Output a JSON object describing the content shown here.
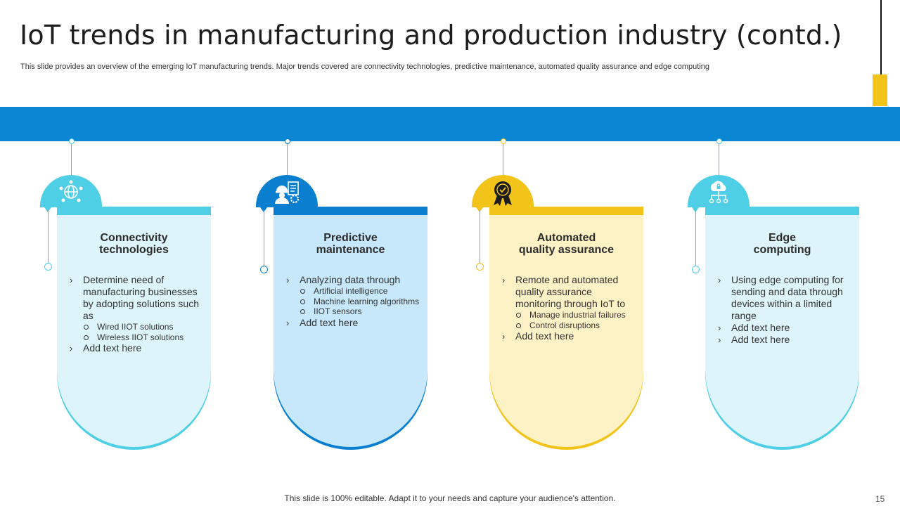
{
  "header": {
    "title": "IoT trends in manufacturing and production industry (contd.)",
    "subtitle": "This slide provides an overview of the emerging IoT manufacturing trends. Major trends covered are connectivity technologies, predictive maintenance, automated quality assurance and edge computing"
  },
  "colors": {
    "band": "#0a86d2",
    "accent_yellow": "#f2c318",
    "card1_fill": "#ddf4fa",
    "card1_edge": "#4ecfe5",
    "card2_fill": "#c7e8fb",
    "card2_edge": "#0a7fd0",
    "card3_fill": "#fdf1c6",
    "card3_edge": "#f2c318",
    "card4_fill": "#ddf4fa",
    "card4_edge": "#4ecfe5"
  },
  "cards": [
    {
      "icon": "network-globe-icon",
      "title_line1": "Connectivity",
      "title_line2": "technologies",
      "points": [
        {
          "text": "Determine need of manufacturing businesses by adopting solutions such as",
          "subs": [
            "Wired IIOT solutions",
            "Wireless IIOT solutions"
          ]
        },
        {
          "text": "Add text here",
          "subs": []
        }
      ]
    },
    {
      "icon": "engineer-checklist-icon",
      "title_line1": "Predictive",
      "title_line2": "maintenance",
      "points": [
        {
          "text": "Analyzing data through",
          "subs": [
            "Artificial intelligence",
            "Machine learning algorithms",
            "IIOT sensors"
          ]
        },
        {
          "text": "Add text here",
          "subs": []
        }
      ]
    },
    {
      "icon": "quality-badge-icon",
      "title_line1": "Automated",
      "title_line2": "quality assurance",
      "points": [
        {
          "text": "Remote and automated quality assurance monitoring through IoT to",
          "subs": [
            "Manage industrial failures",
            "Control disruptions"
          ]
        },
        {
          "text": "Add text here",
          "subs": []
        }
      ]
    },
    {
      "icon": "cloud-network-icon",
      "title_line1": "Edge",
      "title_line2": "computing",
      "points": [
        {
          "text": "Using edge computing for sending and data through devices within a limited range",
          "subs": []
        },
        {
          "text": "Add text here",
          "subs": []
        },
        {
          "text": "Add text here",
          "subs": []
        }
      ]
    }
  ],
  "footer": {
    "note": "This slide is 100% editable. Adapt it to your needs and capture your audience's attention.",
    "page_number": "15"
  }
}
